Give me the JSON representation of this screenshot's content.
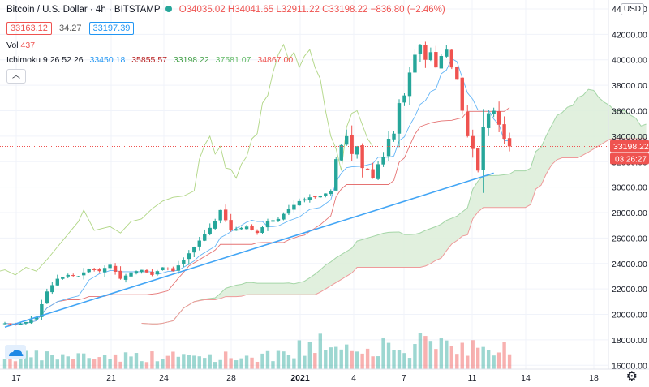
{
  "header": {
    "symbol": "Bitcoin / U.S. Dollar · 4h · BITSTAMP",
    "open": "O34035.02",
    "high": "H34041.65",
    "low": "L32911.22",
    "close": "C33198.22",
    "change": "−836.80 (−2.46%)"
  },
  "quote": {
    "bid": "33163.12",
    "spread": "34.27",
    "ask": "33197.39"
  },
  "volume": {
    "label": "Vol",
    "value": "437"
  },
  "ichimoku": {
    "label": "Ichimoku 9 26 52 26",
    "values": [
      "33450.18",
      "35855.57",
      "33198.22",
      "37581.07",
      "34867.00"
    ],
    "colors": [
      "#2196f3",
      "#b71c1c",
      "#43a047",
      "#a5d6a7",
      "#ef5350"
    ]
  },
  "currency_button": "USD",
  "last_price": "33198.22",
  "countdown": "03:26:27",
  "colors": {
    "up": "#26a69a",
    "down": "#ef5350",
    "trend": "#42a5f5",
    "cloud": "#dcedd8"
  },
  "chart_data": {
    "type": "candlestick",
    "y_ticks": [
      "16000.00",
      "18000.00",
      "20000.00",
      "22000.00",
      "24000.00",
      "26000.00",
      "28000.00",
      "30000.00",
      "32000.00",
      "34000.00",
      "36000.00",
      "38000.00",
      "40000.00",
      "42000.00",
      "44000.00"
    ],
    "x_ticks": [
      "17",
      "21",
      "24",
      "28",
      "2021",
      "4",
      "7",
      "11",
      "14",
      "18"
    ],
    "ylim": [
      15700,
      44700
    ],
    "close_path": [
      [
        0,
        19300
      ],
      [
        2,
        19200
      ],
      [
        4,
        19400
      ],
      [
        6,
        19800
      ],
      [
        8,
        21800
      ],
      [
        10,
        22800
      ],
      [
        12,
        23100
      ],
      [
        14,
        23000
      ],
      [
        16,
        23600
      ],
      [
        18,
        23400
      ],
      [
        20,
        23900
      ],
      [
        22,
        22800
      ],
      [
        24,
        23300
      ],
      [
        26,
        23500
      ],
      [
        28,
        23100
      ],
      [
        30,
        23700
      ],
      [
        32,
        23400
      ],
      [
        34,
        24300
      ],
      [
        36,
        25300
      ],
      [
        38,
        26300
      ],
      [
        40,
        27300
      ],
      [
        41,
        28200
      ],
      [
        43,
        26600
      ],
      [
        46,
        26900
      ],
      [
        48,
        26400
      ],
      [
        50,
        27300
      ],
      [
        52,
        27500
      ],
      [
        54,
        28300
      ],
      [
        56,
        28900
      ],
      [
        58,
        29200
      ],
      [
        60,
        29300
      ],
      [
        62,
        29700
      ],
      [
        63,
        32200
      ],
      [
        64,
        33300
      ],
      [
        65,
        34000
      ],
      [
        66,
        32600
      ],
      [
        67,
        33200
      ],
      [
        68,
        31500
      ],
      [
        69,
        31400
      ],
      [
        70,
        30700
      ],
      [
        71,
        31800
      ],
      [
        72,
        32400
      ],
      [
        73,
        33800
      ],
      [
        74,
        34200
      ],
      [
        75,
        36600
      ],
      [
        76,
        37200
      ],
      [
        77,
        39000
      ],
      [
        78,
        40400
      ],
      [
        79,
        41200
      ],
      [
        80,
        40000
      ],
      [
        81,
        40600
      ],
      [
        82,
        39400
      ],
      [
        83,
        40300
      ],
      [
        84,
        40800
      ],
      [
        85,
        39400
      ],
      [
        86,
        38500
      ],
      [
        87,
        36000
      ],
      [
        88,
        34000
      ],
      [
        89,
        33000
      ],
      [
        90,
        31300
      ],
      [
        91,
        34700
      ],
      [
        92,
        35800
      ],
      [
        93,
        36000
      ],
      [
        94,
        34900
      ],
      [
        95,
        33800
      ],
      [
        96,
        33198
      ]
    ],
    "x_range": [
      -3,
      117
    ],
    "volume_max": 23000
  }
}
